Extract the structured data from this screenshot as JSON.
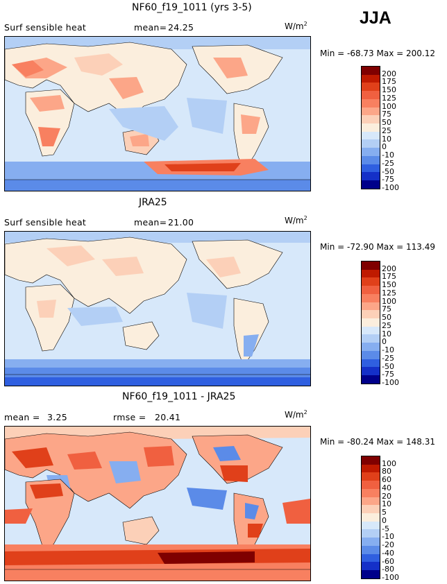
{
  "season": "JJA",
  "panels": [
    {
      "title": "NF60_f19_1011 (yrs 3-5)",
      "left_label": "Surf sensible heat",
      "stat_label": "mean=",
      "stat_value": "24.25",
      "unit": "W/m",
      "unit_exp": "2",
      "min_label": "Min =",
      "min_value": "-68.73",
      "max_label": "Max =",
      "max_value": "200.12",
      "palette": "abs",
      "levels": [
        "200",
        "175",
        "150",
        "125",
        "100",
        "75",
        "50",
        "25",
        "10",
        "0",
        "-10",
        "-25",
        "-50",
        "-75",
        "-100"
      ]
    },
    {
      "title": "JRA25",
      "left_label": "Surf sensible heat",
      "stat_label": "mean=",
      "stat_value": "21.00",
      "unit": "W/m",
      "unit_exp": "2",
      "min_label": "Min =",
      "min_value": "-72.90",
      "max_label": "Max =",
      "max_value": "113.49",
      "palette": "abs",
      "levels": [
        "200",
        "175",
        "150",
        "125",
        "100",
        "75",
        "50",
        "25",
        "10",
        "0",
        "-10",
        "-25",
        "-50",
        "-75",
        "-100"
      ]
    },
    {
      "title": "NF60_f19_1011 - JRA25",
      "left_label": "mean =",
      "left_value": "3.25",
      "stat_label": "rmse =",
      "stat_value": "20.41",
      "unit": "W/m",
      "unit_exp": "2",
      "min_label": "Min =",
      "min_value": "-80.24",
      "max_label": "Max =",
      "max_value": "148.31",
      "palette": "diff",
      "levels": [
        "100",
        "80",
        "60",
        "40",
        "20",
        "10",
        "5",
        "0",
        "-5",
        "-10",
        "-20",
        "-40",
        "-60",
        "-80",
        "-100"
      ]
    }
  ],
  "colors": {
    "abs": [
      "#7f0000",
      "#bf1a00",
      "#e0401a",
      "#f06040",
      "#f88060",
      "#fca688",
      "#fcd0b8",
      "#fbeedd",
      "#d7e8fa",
      "#b3cff5",
      "#86aef0",
      "#5b8be8",
      "#2f5fe0",
      "#1430c8",
      "#00008a"
    ],
    "diff": [
      "#7f0000",
      "#bf1a00",
      "#e0401a",
      "#f06040",
      "#f88060",
      "#fca688",
      "#fcd0b8",
      "#fbeedd",
      "#d7e8fa",
      "#b3cff5",
      "#86aef0",
      "#5b8be8",
      "#2f5fe0",
      "#1430c8",
      "#00008a"
    ]
  }
}
